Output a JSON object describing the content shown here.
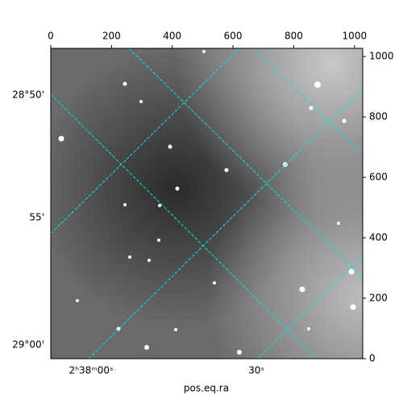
{
  "chart_data": {
    "type": "image",
    "xlabel": "pos.eq.ra",
    "xlim": [
      0,
      1027
    ],
    "xticks": [
      0,
      200,
      400,
      600,
      800,
      1000
    ],
    "ylim": [
      0,
      1027
    ],
    "yticks": [
      0,
      200,
      400,
      600,
      800,
      1000
    ],
    "dec_labels": [
      "28°50'",
      "55'",
      "29°00'"
    ],
    "ra_labels": [
      "2ʰ38ᵐ00ˢ",
      "30ˢ"
    ],
    "grid_color": "#00e5e5"
  }
}
